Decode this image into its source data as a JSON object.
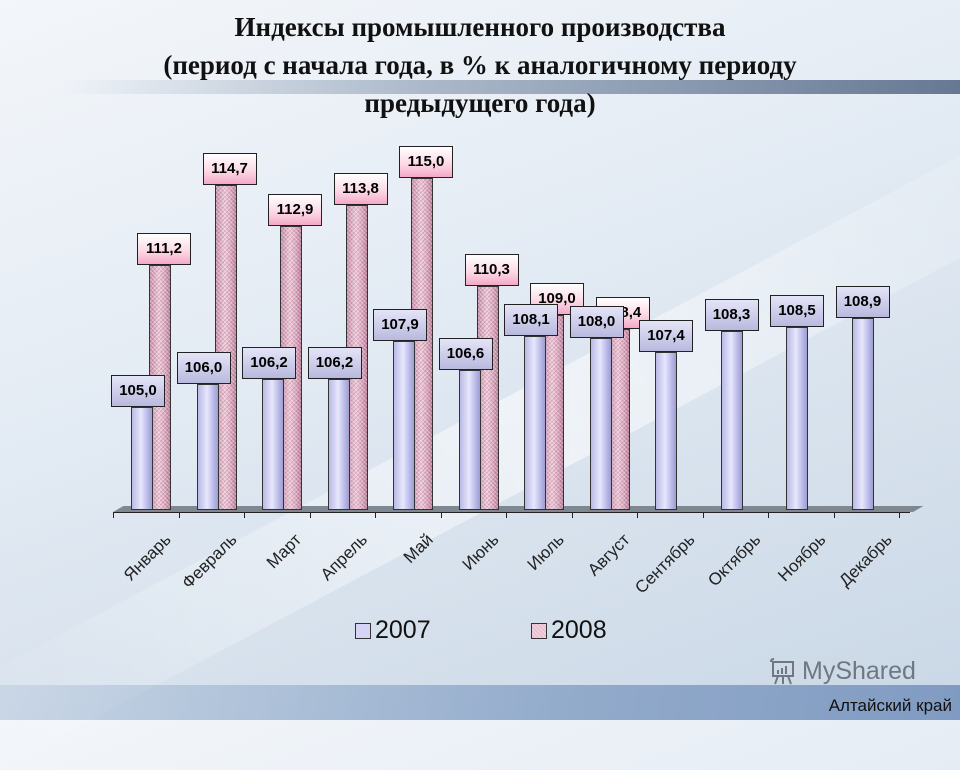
{
  "title": {
    "line1": "Индексы промышленного производства",
    "line2": "(период с начала года, в % к аналогичному периоду",
    "line3": "предыдущего года)"
  },
  "chart_data": {
    "type": "bar",
    "title": "Индексы промышленного производства (период с начала года, в % к аналогичному периоду предыдущего года)",
    "xlabel": "",
    "ylabel": "",
    "ylim": [
      100,
      116
    ],
    "grid": false,
    "legend_position": "bottom",
    "categories": [
      "Январь",
      "Февраль",
      "Март",
      "Апрель",
      "Май",
      "Июнь",
      "Июль",
      "Август",
      "Сентябрь",
      "Октябрь",
      "Ноябрь",
      "Декабрь"
    ],
    "series": [
      {
        "name": "2007",
        "color": "#c4c4ef",
        "values": [
          105.0,
          106.0,
          106.2,
          106.2,
          107.9,
          106.6,
          108.1,
          108.0,
          107.4,
          108.3,
          108.5,
          108.9
        ],
        "labels": [
          "105,0",
          "106,0",
          "106,2",
          "106,2",
          "107,9",
          "106,6",
          "108,1",
          "108,0",
          "107,4",
          "108,3",
          "108,5",
          "108,9"
        ]
      },
      {
        "name": "2008",
        "color": "#e3b3c8",
        "values": [
          111.2,
          114.7,
          112.9,
          113.8,
          115.0,
          110.3,
          109.0,
          108.4,
          null,
          null,
          null,
          null
        ],
        "labels": [
          "111,2",
          "114,7",
          "112,9",
          "113,8",
          "115,0",
          "110,3",
          "109,0",
          "108,4",
          "",
          "",
          "",
          ""
        ]
      }
    ]
  },
  "legend": {
    "items": [
      {
        "label": "2007"
      },
      {
        "label": "2008"
      }
    ]
  },
  "watermark": {
    "text": "MyShared",
    "icon": "presentation-board-icon"
  },
  "footer": {
    "region": "Алтайский край"
  }
}
